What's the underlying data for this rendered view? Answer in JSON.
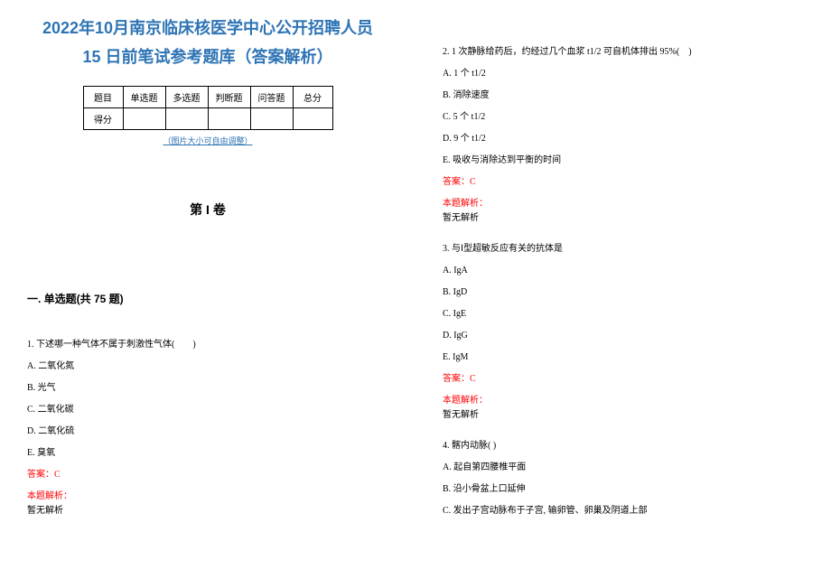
{
  "title": {
    "line1": "2022年10月南京临床核医学中心公开招聘人员",
    "line2": "15 日前笔试参考题库（答案解析）"
  },
  "score_table": {
    "header": [
      "题目",
      "单选题",
      "多选题",
      "判断题",
      "问答题",
      "总分"
    ],
    "row_label": "得分"
  },
  "img_note": "（图片大小可自由调整）",
  "volume_heading": "第 I 卷",
  "section_heading": "一. 单选题(共 75 题)",
  "questions": [
    {
      "stem": "1. 下述哪一种气体不属于刺激性气体(　　)",
      "options": [
        "A. 二氧化氮",
        "B. 光气",
        "C. 二氧化碳",
        "D. 二氧化硫",
        "E. 臭氧"
      ],
      "answer": "答案：C",
      "analysis_label": "本题解析：",
      "analysis_body": "暂无解析"
    },
    {
      "stem": "2. 1 次静脉给药后，约经过几个血浆 t1/2 可自机体排出 95%(　)",
      "options": [
        "A. 1 个 t1/2",
        "B. 消除速度",
        "C. 5 个 t1/2",
        "D. 9 个 t1/2",
        "E. 吸收与消除达到平衡的时间"
      ],
      "answer": "答案：C",
      "analysis_label": "本题解析：",
      "analysis_body": "暂无解析"
    },
    {
      "stem": "3. 与Ⅰ型超敏反应有关的抗体是",
      "options": [
        "A. IgA",
        "B. IgD",
        "C. IgE",
        "D. IgG",
        "E. IgM"
      ],
      "answer": "答案：C",
      "analysis_label": "本题解析：",
      "analysis_body": "暂无解析"
    },
    {
      "stem": "4. 髂内动脉( )",
      "options": [
        "A. 起自第四腰椎平面",
        "B. 沿小骨盆上口延伸",
        "C. 发出子宫动脉布于子宫, 输卵管、卵巢及阴道上部"
      ],
      "answer": "",
      "analysis_label": "",
      "analysis_body": ""
    }
  ],
  "colors": {
    "title": "#2e74b5",
    "link": "#2e74b5",
    "answer": "#ff0000",
    "text": "#000000",
    "background": "#ffffff",
    "border": "#000000"
  }
}
